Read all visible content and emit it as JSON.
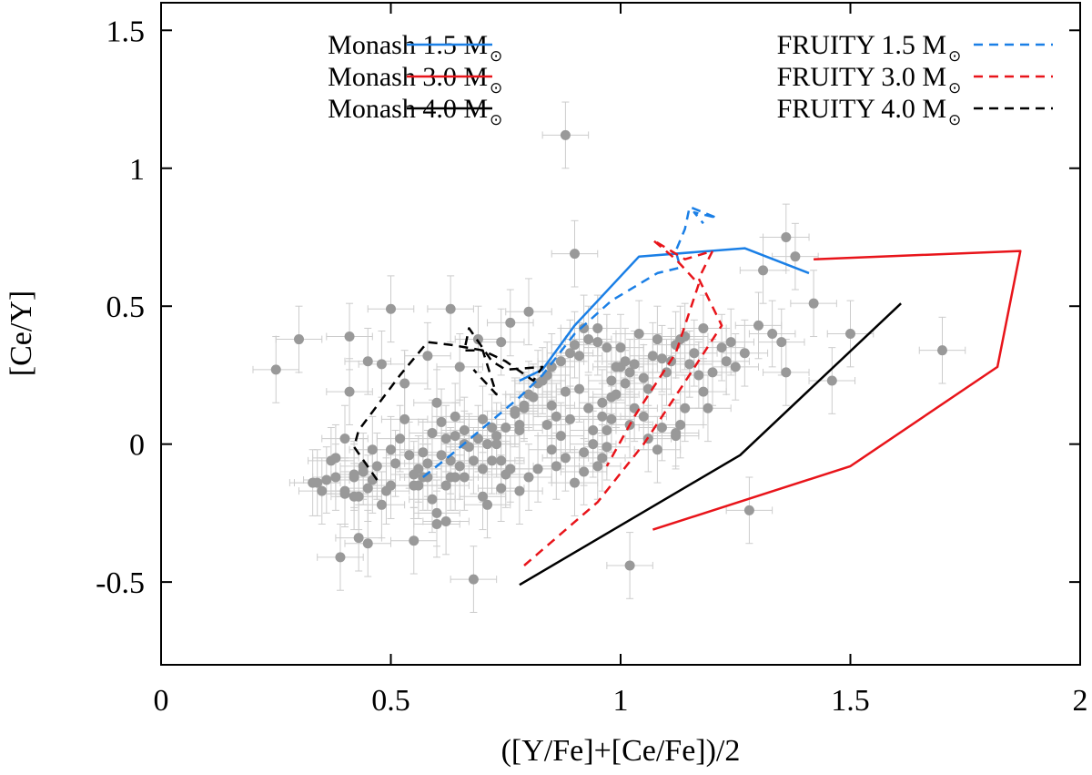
{
  "chart_data": {
    "type": "scatter",
    "xlabel": "([Y/Fe]+[Ce/Fe])/2",
    "ylabel": "[Ce/Y]",
    "xlim": [
      0,
      2
    ],
    "ylim": [
      -0.8,
      1.6
    ],
    "x_ticks": [
      0,
      0.5,
      1,
      1.5,
      2
    ],
    "x_tick_labels": [
      "0",
      "0.5",
      "1",
      "1.5",
      "2"
    ],
    "y_ticks": [
      -0.5,
      0,
      0.5,
      1,
      1.5
    ],
    "y_tick_labels": [
      "-0.5",
      "0",
      "0.5",
      "1",
      "1.5"
    ],
    "colors": {
      "points": "#999999",
      "errorbars": "#cccccc",
      "blue": "#1a7fe6",
      "red": "#e8141a",
      "black": "#000000"
    },
    "legend": [
      {
        "label": "Monash 1.5 M",
        "sub": "⊙",
        "color": "#1a7fe6",
        "dash": false
      },
      {
        "label": "Monash 3.0 M",
        "sub": "⊙",
        "color": "#e8141a",
        "dash": false
      },
      {
        "label": "Monash 4.0 M",
        "sub": "⊙",
        "color": "#000000",
        "dash": false
      },
      {
        "label": "FRUITY 1.5 M",
        "sub": "⊙",
        "color": "#1a7fe6",
        "dash": true
      },
      {
        "label": "FRUITY 3.0 M",
        "sub": "⊙",
        "color": "#e8141a",
        "dash": true
      },
      {
        "label": "FRUITY 4.0 M",
        "sub": "⊙",
        "color": "#000000",
        "dash": true
      }
    ],
    "series": [
      {
        "name": "Monash 1.5 M⊙",
        "color": "#1a7fe6",
        "dash": false,
        "x": [
          0.78,
          0.83,
          0.9,
          1.04,
          1.27,
          1.41
        ],
        "y": [
          0.23,
          0.27,
          0.43,
          0.68,
          0.71,
          0.62
        ]
      },
      {
        "name": "Monash 3.0 M⊙",
        "color": "#e8141a",
        "dash": false,
        "x": [
          1.42,
          1.87,
          1.82,
          1.5,
          1.07
        ],
        "y": [
          0.67,
          0.7,
          0.28,
          -0.08,
          -0.31
        ]
      },
      {
        "name": "Monash 4.0 M⊙",
        "color": "#000000",
        "dash": false,
        "x": [
          0.78,
          1.26,
          1.61
        ],
        "y": [
          -0.51,
          -0.04,
          0.51
        ]
      },
      {
        "name": "FRUITY 1.5 M⊙",
        "color": "#1a7fe6",
        "dash": true,
        "x": [
          0.57,
          0.63,
          0.78,
          0.83,
          0.9,
          0.98,
          1.08,
          1.13,
          1.12,
          1.14,
          1.15,
          1.21,
          1.16,
          1.18
        ],
        "y": [
          -0.12,
          -0.04,
          0.17,
          0.25,
          0.4,
          0.52,
          0.62,
          0.64,
          0.7,
          0.78,
          0.86,
          0.82,
          0.84,
          0.8
        ]
      },
      {
        "name": "FRUITY 3.0 M⊙",
        "color": "#e8141a",
        "dash": true,
        "x": [
          0.79,
          0.95,
          1.05,
          1.13,
          1.22,
          1.17,
          1.2,
          1.14,
          1.07,
          1.12,
          1.17,
          1.12,
          1.03,
          0.97
        ],
        "y": [
          -0.44,
          -0.21,
          0.0,
          0.2,
          0.43,
          0.6,
          0.7,
          0.67,
          0.74,
          0.67,
          0.58,
          0.33,
          0.1,
          -0.08
        ]
      },
      {
        "name": "FRUITY 4.0 M⊙",
        "color": "#000000",
        "dash": true,
        "x": [
          0.47,
          0.42,
          0.43,
          0.52,
          0.58,
          0.63,
          0.7,
          0.75,
          0.81,
          0.83,
          0.75,
          0.72,
          0.67,
          0.66,
          0.7,
          0.73,
          0.68
        ],
        "y": [
          -0.13,
          -0.01,
          0.05,
          0.25,
          0.37,
          0.36,
          0.34,
          0.3,
          0.23,
          0.28,
          0.27,
          0.3,
          0.42,
          0.34,
          0.34,
          0.18,
          0.27
        ]
      }
    ],
    "points": {
      "x": [
        0.88,
        0.25,
        0.3,
        0.41,
        0.45,
        0.5,
        0.39,
        0.42,
        0.4,
        0.38,
        0.34,
        0.33,
        0.36,
        0.4,
        0.41,
        0.44,
        0.46,
        0.42,
        0.48,
        0.43,
        0.45,
        0.47,
        0.52,
        0.54,
        0.55,
        0.56,
        0.58,
        0.6,
        0.61,
        0.59,
        0.62,
        0.63,
        0.64,
        0.65,
        0.57,
        0.53,
        0.5,
        0.51,
        0.49,
        0.46,
        0.4,
        0.43,
        0.55,
        0.58,
        0.6,
        0.62,
        0.63,
        0.66,
        0.67,
        0.69,
        0.7,
        0.72,
        0.73,
        0.74,
        0.76,
        0.77,
        0.78,
        0.79,
        0.8,
        0.82,
        0.84,
        0.85,
        0.86,
        0.87,
        0.88,
        0.89,
        0.9,
        0.91,
        0.92,
        0.93,
        0.94,
        0.95,
        0.96,
        0.97,
        0.98,
        0.99,
        1.0,
        1.01,
        1.02,
        1.03,
        1.04,
        1.05,
        1.06,
        1.07,
        1.08,
        1.09,
        1.1,
        1.11,
        1.12,
        1.13,
        1.14,
        1.15,
        1.16,
        1.17,
        1.18,
        1.2,
        1.22,
        1.24,
        1.27,
        1.3,
        1.33,
        1.35,
        1.36,
        1.38,
        1.42,
        1.46,
        1.5,
        1.7,
        0.59,
        0.61,
        0.64,
        0.66,
        0.68,
        0.7,
        0.71,
        0.73,
        0.75,
        0.77,
        0.79,
        0.81,
        0.83,
        0.85,
        0.87,
        0.89,
        0.91,
        0.93,
        0.95,
        0.97,
        0.99,
        1.01,
        1.03,
        1.05,
        1.08,
        1.12,
        1.14,
        1.18,
        1.25,
        0.68,
        0.6,
        0.55,
        0.7,
        0.75,
        0.8,
        0.85,
        0.9,
        0.95,
        0.62,
        0.66,
        0.71,
        0.74,
        0.78,
        0.82,
        0.86,
        0.88,
        0.92,
        0.97,
        1.02,
        0.96,
        0.98,
        1.0,
        0.56,
        0.64,
        0.72,
        0.78,
        0.84,
        0.94,
        0.98,
        1.12,
        1.28,
        1.02,
        0.9,
        0.63,
        0.76,
        0.8,
        0.58,
        0.48,
        0.53,
        1.31,
        1.36,
        1.23,
        1.19,
        0.92,
        0.96,
        1.06,
        1.09,
        1.13,
        0.74,
        0.69,
        0.65,
        0.57,
        0.5,
        0.45,
        0.44,
        0.42,
        0.38,
        0.37,
        0.35
      ],
      "y": [
        1.12,
        0.27,
        0.38,
        0.39,
        0.3,
        0.49,
        -0.41,
        -0.12,
        -0.17,
        -0.05,
        -0.14,
        -0.14,
        -0.13,
        0.02,
        0.19,
        -0.08,
        -0.13,
        -0.19,
        -0.22,
        -0.34,
        -0.36,
        -0.08,
        0.02,
        -0.04,
        -0.15,
        -0.09,
        -0.07,
        0.15,
        0.08,
        -0.2,
        0.02,
        -0.12,
        0.1,
        -0.08,
        -0.03,
        0.09,
        -0.02,
        -0.07,
        -0.17,
        -0.02,
        -0.18,
        -0.19,
        -0.35,
        -0.12,
        -0.25,
        -0.28,
        -0.06,
        0.05,
        -0.01,
        0.02,
        0.09,
        0.06,
        0.0,
        -0.06,
        -0.09,
        0.11,
        0.05,
        0.13,
        0.18,
        0.22,
        0.25,
        0.14,
        0.1,
        0.03,
        0.19,
        0.09,
        0.36,
        0.2,
        0.42,
        0.13,
        0.05,
        0.42,
        0.1,
        0.05,
        0.23,
        0.18,
        0.28,
        0.3,
        0.26,
        0.29,
        0.4,
        0.24,
        0.2,
        0.32,
        0.38,
        0.31,
        0.26,
        0.3,
        0.36,
        0.38,
        0.39,
        0.29,
        0.33,
        0.25,
        0.42,
        0.26,
        0.35,
        0.37,
        0.33,
        0.43,
        0.4,
        0.37,
        0.75,
        0.68,
        0.51,
        0.23,
        0.4,
        0.34,
        0.04,
        -0.04,
        0.03,
        0.0,
        -0.06,
        -0.09,
        0.0,
        0.03,
        0.06,
        0.12,
        0.14,
        0.17,
        0.23,
        0.28,
        0.3,
        0.33,
        0.32,
        0.38,
        0.37,
        0.35,
        0.28,
        0.22,
        0.13,
        0.1,
        -0.02,
        0.04,
        0.13,
        0.19,
        0.28,
        -0.49,
        -0.29,
        -0.11,
        -0.19,
        -0.11,
        -0.12,
        -0.02,
        -0.14,
        -0.08,
        -0.15,
        -0.12,
        -0.22,
        -0.16,
        -0.17,
        -0.09,
        -0.08,
        -0.05,
        -0.1,
        -0.01,
        0.07,
        0.15,
        0.17,
        0.35,
        -0.15,
        -0.12,
        -0.06,
        0.07,
        0.07,
        0.0,
        0.09,
        0.03,
        -0.24,
        -0.44,
        0.69,
        0.49,
        0.44,
        0.48,
        0.32,
        0.29,
        0.22,
        0.63,
        0.26,
        0.3,
        0.13,
        -0.03,
        -0.05,
        0.02,
        0.06,
        0.07,
        0.37,
        0.38,
        0.28,
        -0.12,
        -0.15,
        -0.16,
        -0.1,
        -0.11,
        -0.12,
        -0.06,
        -0.17
      ],
      "xerr": 0.05,
      "yerr": 0.12
    }
  }
}
